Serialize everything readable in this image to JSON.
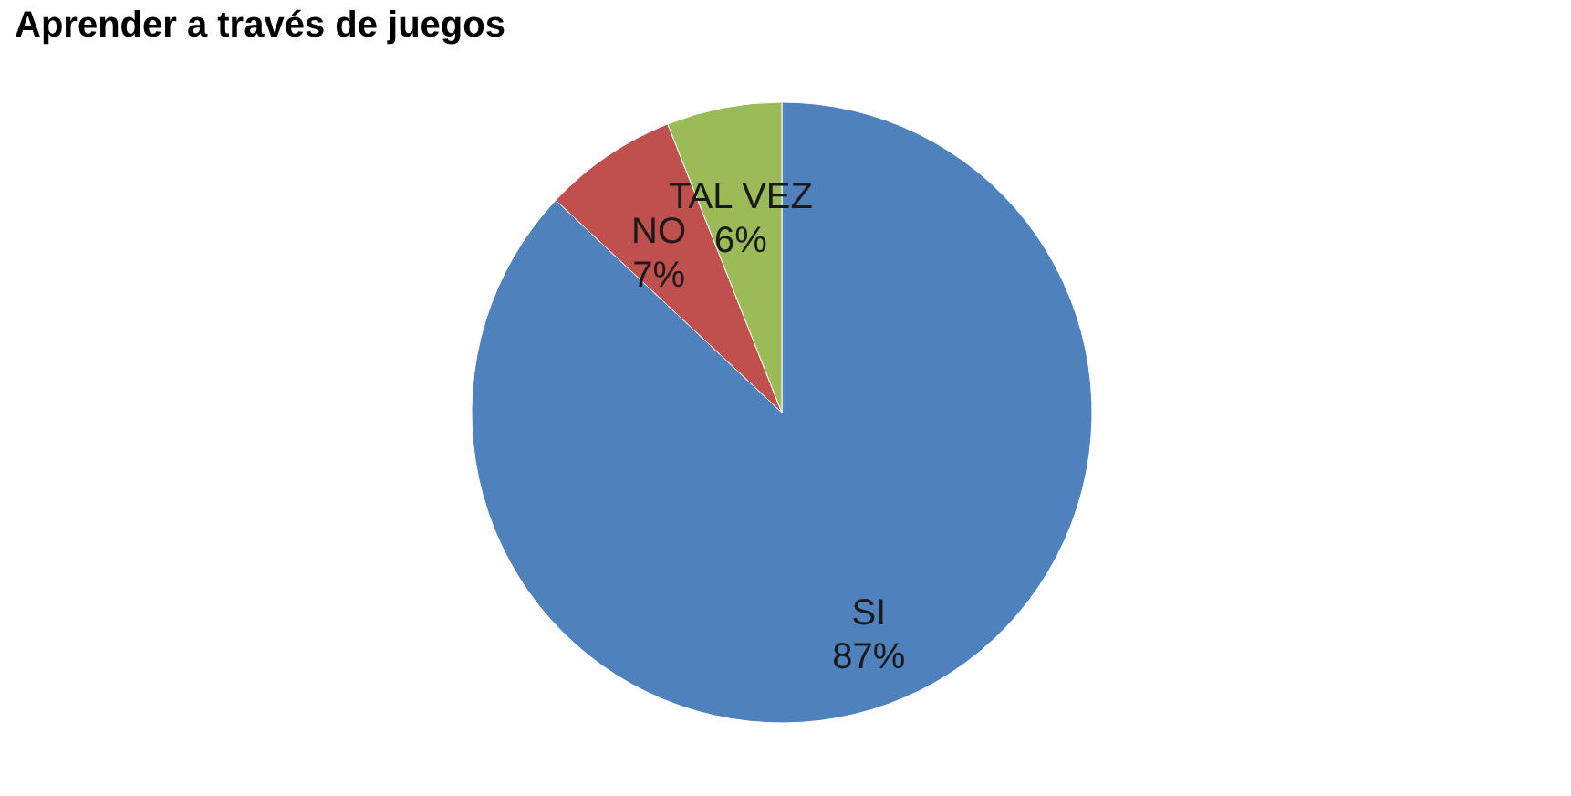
{
  "chart_data": {
    "type": "pie",
    "title": "Aprender a través de juegos",
    "categories": [
      "SI",
      "NO",
      "TAL VEZ"
    ],
    "values": [
      87,
      7,
      6
    ],
    "colors": [
      "#4f81bd",
      "#c0504d",
      "#9bbb59"
    ],
    "value_labels": [
      "87%",
      "7%",
      "6%"
    ],
    "legend": false
  }
}
